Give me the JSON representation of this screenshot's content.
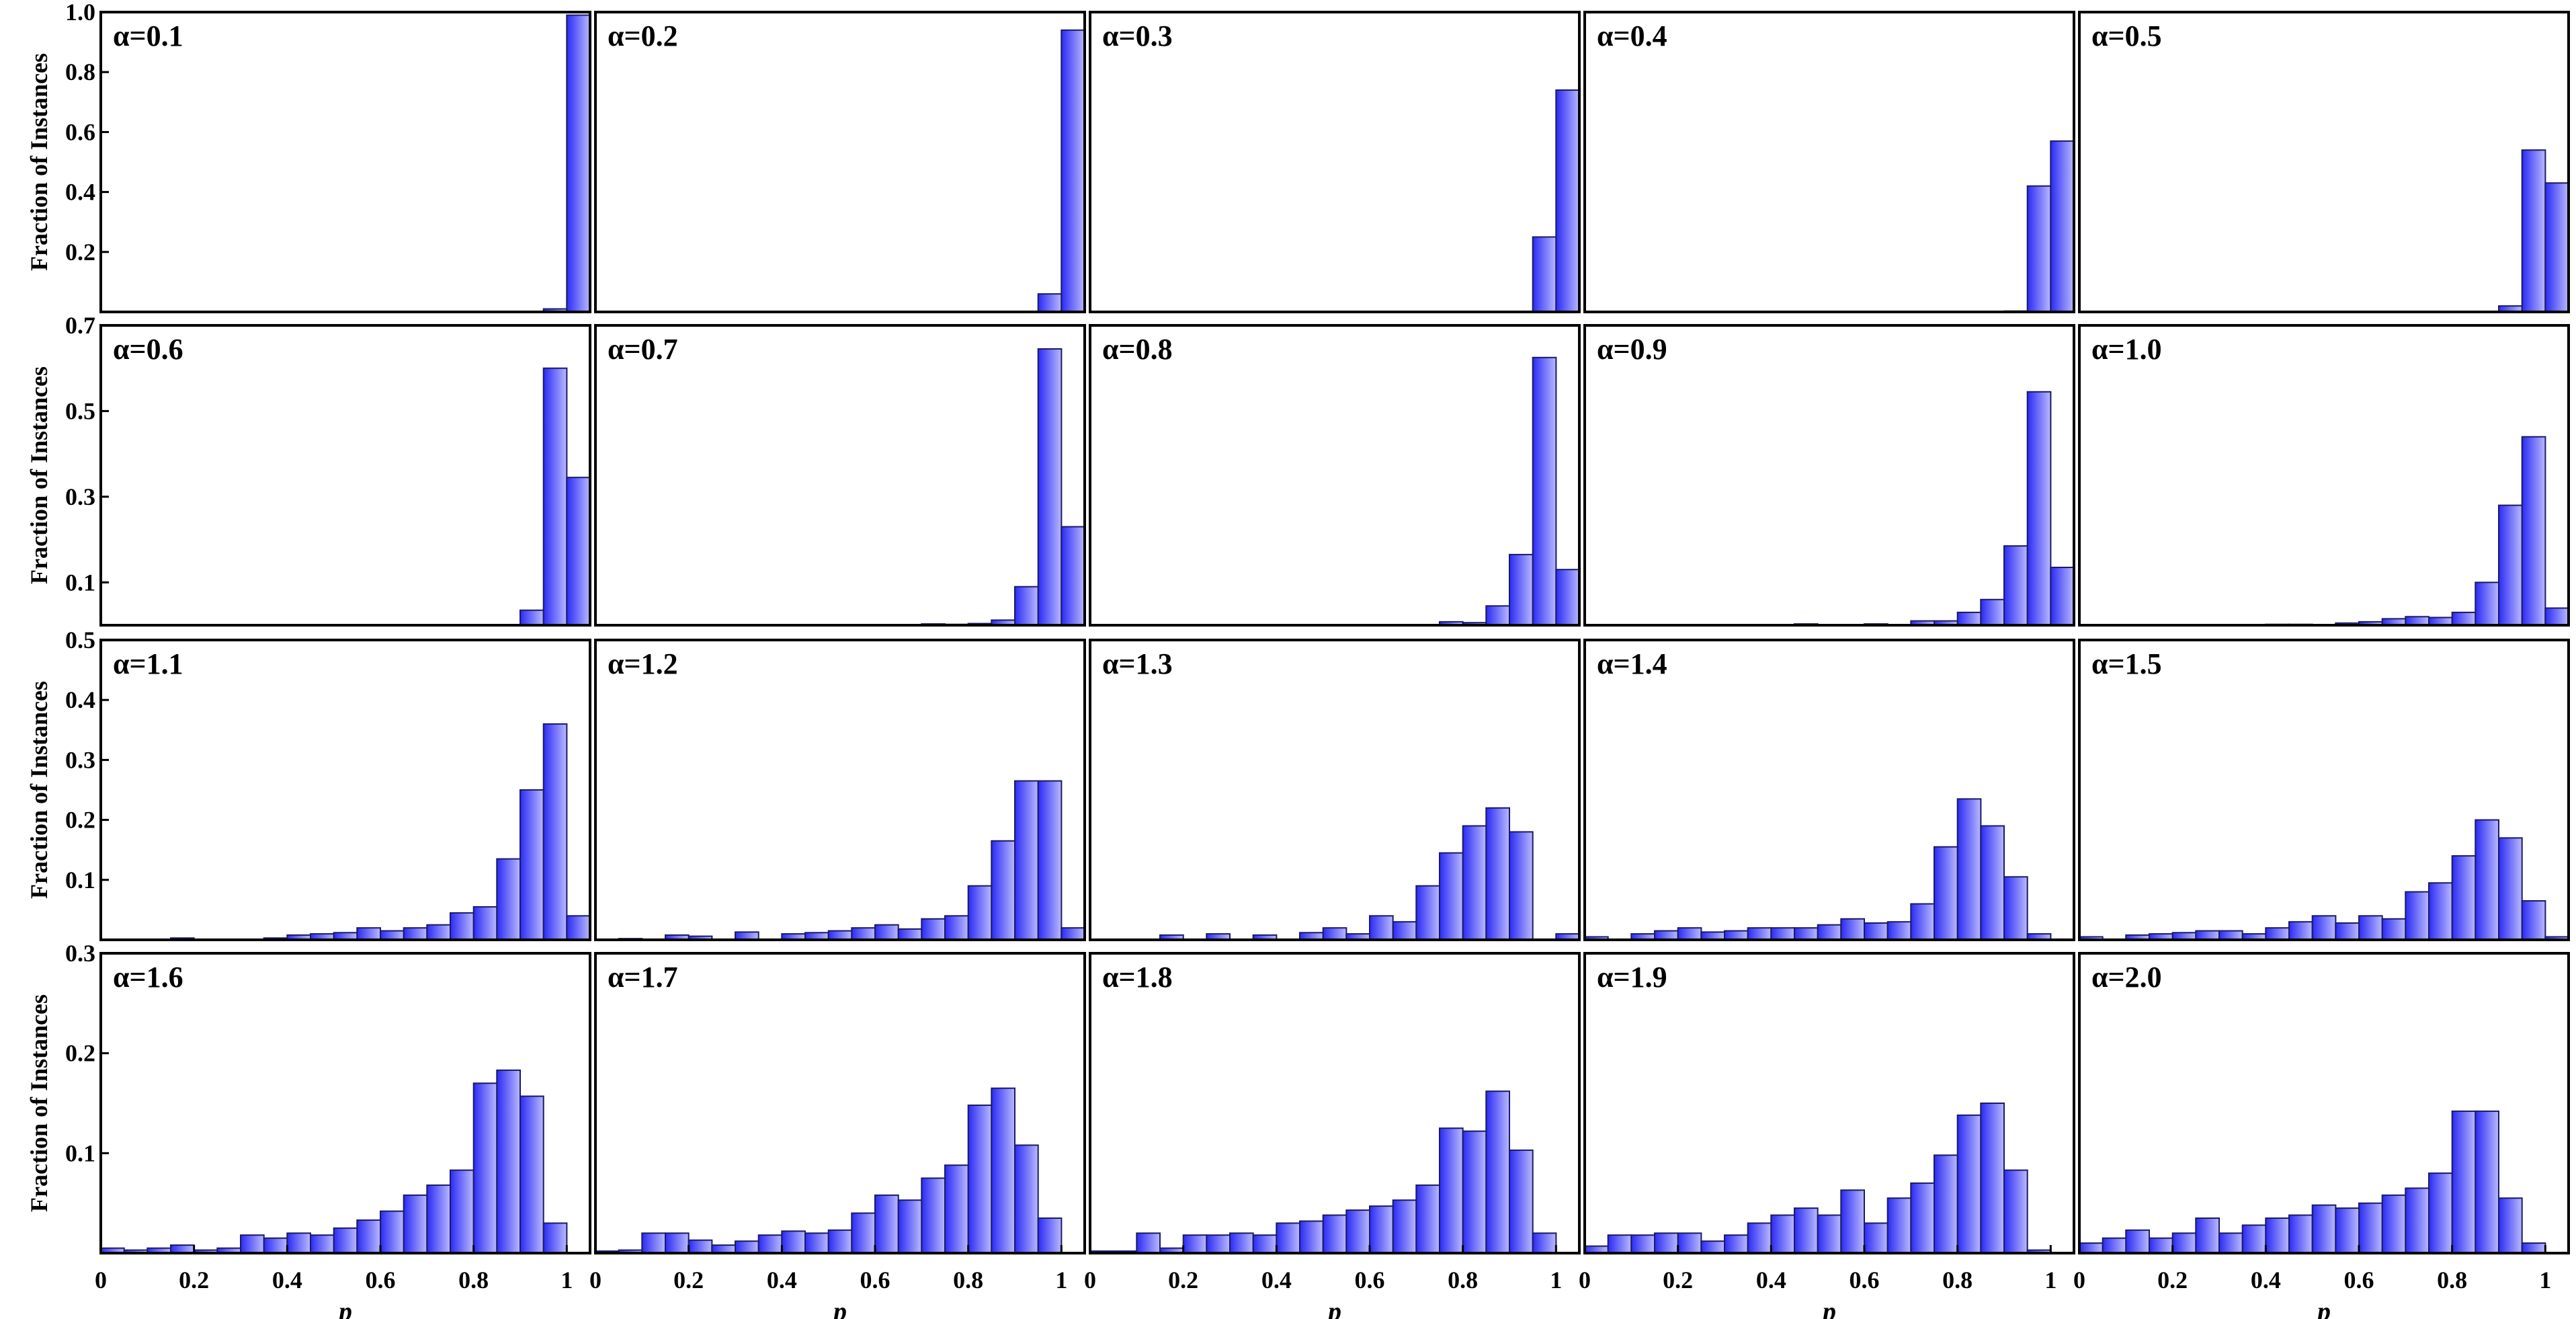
{
  "bar_color": "#2b2bf5",
  "bar_highlight": "#b9b9ff",
  "chart_data": {
    "type": "bar",
    "layout": "grid-4x5",
    "xlabel": "p",
    "ylabel": "Fraction of Instances",
    "x_ticks": [
      "0",
      "0.2",
      "0.4",
      "0.6",
      "0.8",
      "1"
    ],
    "xlim": [
      0,
      1.05
    ],
    "bin_width": 0.05,
    "bins_left": [
      0,
      0.05,
      0.1,
      0.15,
      0.2,
      0.25,
      0.3,
      0.35,
      0.4,
      0.45,
      0.5,
      0.55,
      0.6,
      0.65,
      0.7,
      0.75,
      0.8,
      0.85,
      0.9,
      0.95,
      1.0
    ],
    "rows": [
      {
        "ylim": [
          0,
          1.0
        ],
        "y_ticks": [
          "0.2",
          "0.4",
          "0.6",
          "0.8",
          "1.0"
        ]
      },
      {
        "ylim": [
          0,
          0.7
        ],
        "y_ticks": [
          "0.1",
          "0.3",
          "0.5",
          "0.7"
        ]
      },
      {
        "ylim": [
          0,
          0.5
        ],
        "y_ticks": [
          "0.1",
          "0.2",
          "0.3",
          "0.4",
          "0.5"
        ]
      },
      {
        "ylim": [
          0,
          0.3
        ],
        "y_ticks": [
          "0.1",
          "0.2",
          "0.3"
        ]
      }
    ],
    "panels": [
      {
        "label": "α=0.1",
        "values": [
          0,
          0,
          0,
          0,
          0,
          0,
          0,
          0,
          0,
          0,
          0,
          0,
          0,
          0,
          0,
          0,
          0,
          0,
          0,
          0.01,
          0.99
        ]
      },
      {
        "label": "α=0.2",
        "values": [
          0,
          0,
          0,
          0,
          0,
          0,
          0,
          0,
          0,
          0,
          0,
          0,
          0,
          0,
          0,
          0,
          0,
          0,
          0,
          0.06,
          0.94
        ]
      },
      {
        "label": "α=0.3",
        "values": [
          0,
          0,
          0,
          0,
          0,
          0,
          0,
          0,
          0,
          0,
          0,
          0,
          0,
          0,
          0,
          0,
          0,
          0,
          0,
          0.25,
          0.74
        ]
      },
      {
        "label": "α=0.4",
        "values": [
          0,
          0,
          0,
          0,
          0,
          0,
          0,
          0,
          0,
          0,
          0,
          0,
          0,
          0,
          0,
          0,
          0,
          0,
          0.003,
          0.42,
          0.57
        ]
      },
      {
        "label": "α=0.5",
        "values": [
          0,
          0,
          0,
          0,
          0,
          0,
          0,
          0,
          0,
          0,
          0,
          0,
          0,
          0,
          0,
          0,
          0,
          0,
          0.02,
          0.54,
          0.43
        ]
      },
      {
        "label": "α=0.6",
        "values": [
          0,
          0,
          0,
          0,
          0,
          0,
          0,
          0,
          0,
          0,
          0,
          0,
          0,
          0,
          0,
          0,
          0,
          0,
          0.035,
          0.6,
          0.345
        ]
      },
      {
        "label": "α=0.7",
        "values": [
          0,
          0,
          0,
          0,
          0,
          0,
          0,
          0,
          0,
          0,
          0,
          0,
          0,
          0,
          0.003,
          0.002,
          0.004,
          0.012,
          0.09,
          0.645,
          0.23
        ]
      },
      {
        "label": "α=0.8",
        "values": [
          0,
          0,
          0,
          0,
          0,
          0,
          0,
          0,
          0,
          0,
          0,
          0,
          0,
          0,
          0,
          0.008,
          0.006,
          0.045,
          0.165,
          0.625,
          0.13
        ]
      },
      {
        "label": "α=0.9",
        "values": [
          0,
          0,
          0,
          0,
          0,
          0,
          0,
          0,
          0,
          0.003,
          0,
          0,
          0.003,
          0,
          0.01,
          0.01,
          0.03,
          0.06,
          0.185,
          0.545,
          0.135
        ]
      },
      {
        "label": "α=1.0",
        "values": [
          0,
          0,
          0,
          0,
          0,
          0,
          0,
          0,
          0.002,
          0.002,
          0,
          0.005,
          0.008,
          0.015,
          0.02,
          0.018,
          0.03,
          0.1,
          0.28,
          0.44,
          0.04
        ]
      },
      {
        "label": "α=1.1",
        "values": [
          0,
          0,
          0,
          0.003,
          0,
          0,
          0,
          0.003,
          0.008,
          0.01,
          0.012,
          0.02,
          0.015,
          0.02,
          0.025,
          0.045,
          0.055,
          0.135,
          0.25,
          0.36,
          0.04
        ]
      },
      {
        "label": "α=1.2",
        "values": [
          0,
          0.002,
          0,
          0.008,
          0.006,
          0,
          0.013,
          0,
          0.01,
          0.012,
          0.015,
          0.02,
          0.025,
          0.018,
          0.035,
          0.04,
          0.09,
          0.165,
          0.265,
          0.265,
          0.02
        ]
      },
      {
        "label": "α=1.3",
        "values": [
          0,
          0,
          0,
          0.008,
          0,
          0.01,
          0,
          0.008,
          0,
          0.012,
          0.02,
          0.01,
          0.04,
          0.03,
          0.09,
          0.145,
          0.19,
          0.22,
          0.18,
          0,
          0.01
        ]
      },
      {
        "label": "α=1.4",
        "values": [
          0.005,
          0,
          0.01,
          0.015,
          0.02,
          0.013,
          0.015,
          0.02,
          0.02,
          0.02,
          0.025,
          0.035,
          0.028,
          0.03,
          0.06,
          0.155,
          0.235,
          0.19,
          0.105,
          0.01,
          0
        ]
      },
      {
        "label": "α=1.5",
        "values": [
          0.005,
          0,
          0.008,
          0.01,
          0.012,
          0.015,
          0.015,
          0.01,
          0.02,
          0.03,
          0.04,
          0.028,
          0.04,
          0.035,
          0.08,
          0.095,
          0.14,
          0.2,
          0.17,
          0.065,
          0.005
        ]
      },
      {
        "label": "α=1.6",
        "values": [
          0.005,
          0.003,
          0.005,
          0.008,
          0.003,
          0.005,
          0.018,
          0.015,
          0.02,
          0.018,
          0.025,
          0.033,
          0.042,
          0.058,
          0.068,
          0.083,
          0.17,
          0.183,
          0.157,
          0.03,
          0
        ]
      },
      {
        "label": "α=1.7",
        "values": [
          0.002,
          0.003,
          0.02,
          0.02,
          0.013,
          0.008,
          0.012,
          0.018,
          0.022,
          0.02,
          0.023,
          0.04,
          0.058,
          0.053,
          0.075,
          0.088,
          0.148,
          0.165,
          0.108,
          0.035,
          0
        ]
      },
      {
        "label": "α=1.8",
        "values": [
          0.002,
          0.002,
          0.02,
          0.005,
          0.018,
          0.018,
          0.02,
          0.018,
          0.03,
          0.032,
          0.038,
          0.043,
          0.047,
          0.053,
          0.068,
          0.125,
          0.122,
          0.162,
          0.103,
          0.02,
          0
        ]
      },
      {
        "label": "α=1.9",
        "values": [
          0.007,
          0.018,
          0.018,
          0.02,
          0.02,
          0.012,
          0.018,
          0.03,
          0.038,
          0.045,
          0.038,
          0.063,
          0.03,
          0.055,
          0.07,
          0.098,
          0.138,
          0.15,
          0.083,
          0.003,
          0
        ]
      },
      {
        "label": "α=2.0",
        "values": [
          0.01,
          0.015,
          0.023,
          0.015,
          0.02,
          0.035,
          0.02,
          0.028,
          0.035,
          0.038,
          0.048,
          0.045,
          0.05,
          0.058,
          0.065,
          0.08,
          0.142,
          0.142,
          0.055,
          0.01,
          0
        ]
      }
    ]
  }
}
